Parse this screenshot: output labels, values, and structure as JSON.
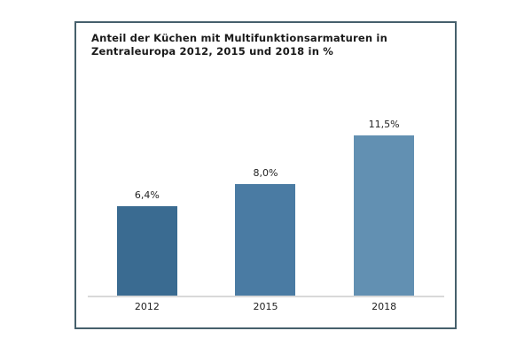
{
  "panel": {
    "border_color": "#46606c",
    "background": "#ffffff"
  },
  "title": {
    "line1": "Anteil der Küchen mit Multifunktionsarmaturen in",
    "line2": "Zentraleuropa 2012, 2015 und 2018 in %"
  },
  "chart_data": {
    "type": "bar",
    "title": "Anteil der Küchen mit Multifunktionsarmaturen in Zentraleuropa 2012, 2015 und 2018 in %",
    "categories": [
      "2012",
      "2015",
      "2018"
    ],
    "values": [
      6.4,
      8.0,
      11.5
    ],
    "value_labels": [
      "6,4%",
      "8,0%",
      "11,5%"
    ],
    "bar_colors": [
      "#3a6b91",
      "#4a7ba3",
      "#6290b2"
    ],
    "xlabel": "",
    "ylabel": "",
    "ylim": [
      0,
      13
    ],
    "grid": false,
    "legend": false,
    "axis_line_color": "#d9d9d9",
    "label_color": "#222222"
  }
}
